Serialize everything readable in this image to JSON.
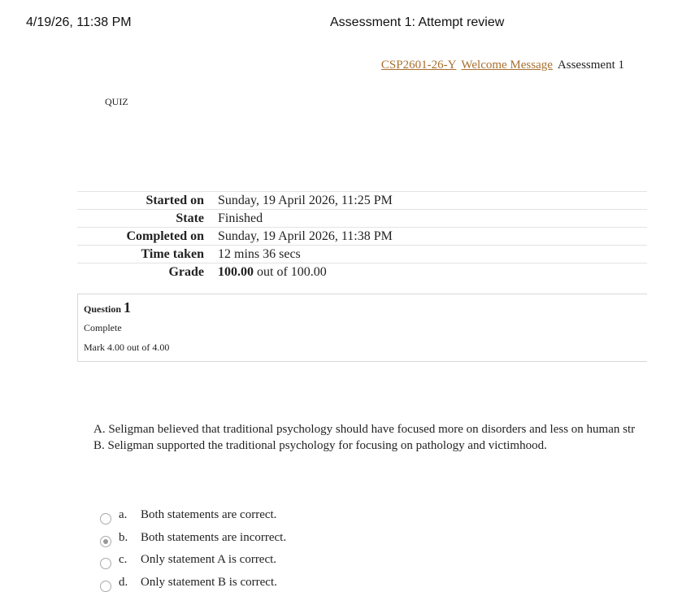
{
  "header": {
    "timestamp": "4/19/26, 11:38 PM",
    "title": "Assessment 1: Attempt review"
  },
  "breadcrumb": [
    "CSP2601-26-Y",
    "Welcome Message",
    "Assessment 1"
  ],
  "section_label": "QUIZ",
  "summary": {
    "rows": [
      [
        "Started on",
        "Sunday, 19 April 2026, 11:25 PM"
      ],
      [
        "State",
        "Finished"
      ],
      [
        "Completed on",
        "Sunday, 19 April 2026, 11:38 PM"
      ],
      [
        "Time taken",
        "12 mins 36 secs"
      ]
    ],
    "grade": {
      "label": "Grade",
      "score": "100.00",
      "rest": "out of 100.00"
    }
  },
  "question": {
    "label": "Question",
    "number": "1",
    "state": "Complete",
    "mark": "Mark 4.00 out of 4.00",
    "statements": [
      "A. Seligman believed that traditional psychology should have focused more on disorders and less on human str",
      "B. Seligman supported the traditional psychology for focusing on pathology and victimhood."
    ],
    "options": [
      [
        "a.",
        "Both statements are correct."
      ],
      [
        "b.",
        "Both statements are incorrect."
      ],
      [
        "c.",
        "Only statement A is correct."
      ],
      [
        "d.",
        "Only statement B is correct."
      ]
    ]
  }
}
